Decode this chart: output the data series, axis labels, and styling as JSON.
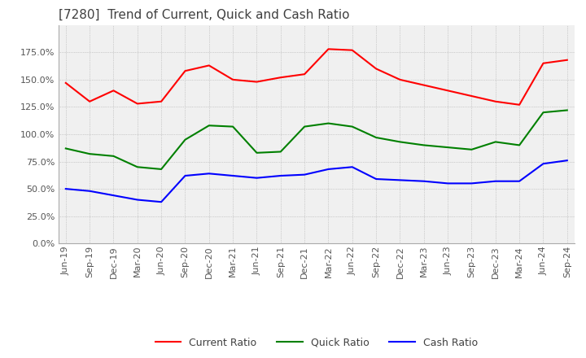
{
  "title": "[7280]  Trend of Current, Quick and Cash Ratio",
  "x_labels": [
    "Jun-19",
    "Sep-19",
    "Dec-19",
    "Mar-20",
    "Jun-20",
    "Sep-20",
    "Dec-20",
    "Mar-21",
    "Jun-21",
    "Sep-21",
    "Dec-21",
    "Mar-22",
    "Jun-22",
    "Sep-22",
    "Dec-22",
    "Mar-23",
    "Jun-23",
    "Sep-23",
    "Dec-23",
    "Mar-24",
    "Jun-24",
    "Sep-24"
  ],
  "current_ratio": [
    147,
    130,
    140,
    128,
    130,
    158,
    163,
    150,
    148,
    152,
    155,
    178,
    177,
    160,
    150,
    145,
    140,
    135,
    130,
    127,
    165,
    168
  ],
  "quick_ratio": [
    87,
    82,
    80,
    70,
    68,
    95,
    108,
    107,
    83,
    84,
    107,
    110,
    107,
    97,
    93,
    90,
    88,
    86,
    93,
    90,
    120,
    122
  ],
  "cash_ratio": [
    50,
    48,
    44,
    40,
    38,
    62,
    64,
    62,
    60,
    62,
    63,
    68,
    70,
    59,
    58,
    57,
    55,
    55,
    57,
    57,
    73,
    76
  ],
  "ylim": [
    0,
    200
  ],
  "yticks": [
    0,
    25,
    50,
    75,
    100,
    125,
    150,
    175
  ],
  "current_color": "#ff0000",
  "quick_color": "#008000",
  "cash_color": "#0000ff",
  "background_color": "#ffffff",
  "plot_bg_color": "#f0f0f0",
  "grid_color": "#aaaaaa",
  "title_color": "#404040",
  "title_fontsize": 11,
  "tick_color": "#555555",
  "tick_fontsize": 8
}
